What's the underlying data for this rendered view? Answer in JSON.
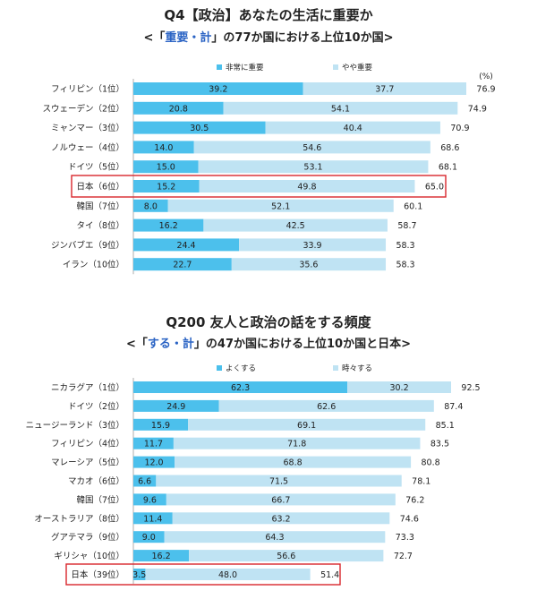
{
  "colors": {
    "dark": "#4cc0ec",
    "light": "#bfe3f3",
    "highlight_box": "#d9262c",
    "axis": "#999999"
  },
  "chart_data": [
    {
      "type": "bar",
      "stacked": true,
      "orientation": "horizontal",
      "title": "Q4【政治】あなたの生活に重要か",
      "subtitle": {
        "before": "<「",
        "highlight": "重要・計",
        "after": "」の77か国における上位10か国>"
      },
      "unit": "(%)",
      "legend": [
        "非常に重要",
        "やや重要"
      ],
      "categories": [
        "フィリピン（1位）",
        "スウェーデン（2位）",
        "ミャンマー（3位）",
        "ノルウェー（4位）",
        "ドイツ（5位）",
        "日本（6位）",
        "韓国（7位）",
        "タイ（8位）",
        "ジンバブエ（9位）",
        "イラン（10位）"
      ],
      "series": [
        {
          "name": "非常に重要",
          "values": [
            39.2,
            20.8,
            30.5,
            14.0,
            15.0,
            15.2,
            8.0,
            16.2,
            24.4,
            22.7
          ]
        },
        {
          "name": "やや重要",
          "values": [
            37.7,
            54.1,
            40.4,
            54.6,
            53.1,
            49.8,
            52.1,
            42.5,
            33.9,
            35.6
          ]
        }
      ],
      "totals": [
        "76.9",
        "74.9",
        "70.9",
        "68.6",
        "68.1",
        "65.0",
        "60.1",
        "58.7",
        "58.3",
        "58.3"
      ],
      "highlight_index": 5
    },
    {
      "type": "bar",
      "stacked": true,
      "orientation": "horizontal",
      "title": "Q200 友人と政治の話をする頻度",
      "subtitle": {
        "before": "<「",
        "highlight": "する・計",
        "after": "」の47か国における上位10か国と日本>"
      },
      "legend": [
        "よくする",
        "時々する"
      ],
      "categories": [
        "ニカラグア（1位）",
        "ドイツ（2位）",
        "ニュージーランド（3位）",
        "フィリピン（4位）",
        "マレーシア（5位）",
        "マカオ（6位）",
        "韓国（7位）",
        "オーストラリア（8位）",
        "グアテマラ（9位）",
        "ギリシャ（10位）",
        "日本（39位）"
      ],
      "series": [
        {
          "name": "よくする",
          "values": [
            62.3,
            24.9,
            15.9,
            11.7,
            12.0,
            6.6,
            9.6,
            11.4,
            9.0,
            16.2,
            3.5
          ]
        },
        {
          "name": "時々する",
          "values": [
            30.2,
            62.6,
            69.1,
            71.8,
            68.8,
            71.5,
            66.7,
            63.2,
            64.3,
            56.6,
            48.0
          ]
        }
      ],
      "totals": [
        "92.5",
        "87.4",
        "85.1",
        "83.5",
        "80.8",
        "78.1",
        "76.2",
        "74.6",
        "73.3",
        "72.7",
        "51.4"
      ],
      "highlight_index": 10
    }
  ]
}
